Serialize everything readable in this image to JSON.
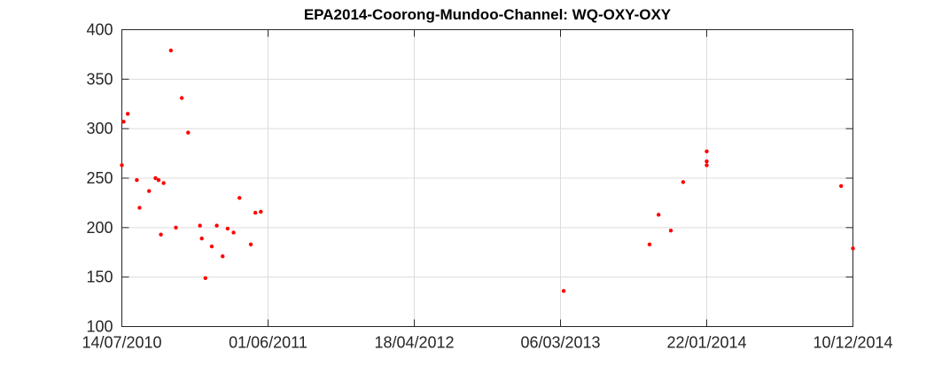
{
  "chart_data": {
    "type": "scatter",
    "title": "EPA2014-Coorong-Mundoo-Channel: WQ-OXY-OXY",
    "xlabel": "",
    "ylabel": "",
    "x_type": "date",
    "xlim": [
      "2010-07-14",
      "2014-12-10"
    ],
    "ylim": [
      100,
      400
    ],
    "x_ticks": [
      {
        "date": "2010-07-14",
        "label": "14/07/2010"
      },
      {
        "date": "2011-06-01",
        "label": "01/06/2011"
      },
      {
        "date": "2012-04-18",
        "label": "18/04/2012"
      },
      {
        "date": "2013-03-06",
        "label": "06/03/2013"
      },
      {
        "date": "2014-01-22",
        "label": "22/01/2014"
      },
      {
        "date": "2014-12-10",
        "label": "10/12/2014"
      }
    ],
    "y_ticks": [
      100,
      150,
      200,
      250,
      300,
      350,
      400
    ],
    "grid": true,
    "marker_color": "#ff0000",
    "series": [
      {
        "points": [
          {
            "x": "2010-07-14",
            "y": 263
          },
          {
            "x": "2010-07-18",
            "y": 307
          },
          {
            "x": "2010-07-27",
            "y": 315
          },
          {
            "x": "2010-08-16",
            "y": 248
          },
          {
            "x": "2010-08-22",
            "y": 220
          },
          {
            "x": "2010-09-12",
            "y": 237
          },
          {
            "x": "2010-09-26",
            "y": 250
          },
          {
            "x": "2010-10-03",
            "y": 248
          },
          {
            "x": "2010-10-08",
            "y": 193
          },
          {
            "x": "2010-10-14",
            "y": 245
          },
          {
            "x": "2010-10-30",
            "y": 379
          },
          {
            "x": "2010-11-10",
            "y": 200
          },
          {
            "x": "2010-11-23",
            "y": 331
          },
          {
            "x": "2010-12-07",
            "y": 296
          },
          {
            "x": "2011-01-02",
            "y": 202
          },
          {
            "x": "2011-01-06",
            "y": 189
          },
          {
            "x": "2011-01-14",
            "y": 149
          },
          {
            "x": "2011-01-28",
            "y": 181
          },
          {
            "x": "2011-02-08",
            "y": 202
          },
          {
            "x": "2011-02-21",
            "y": 171
          },
          {
            "x": "2011-03-04",
            "y": 199
          },
          {
            "x": "2011-03-17",
            "y": 195
          },
          {
            "x": "2011-03-30",
            "y": 230
          },
          {
            "x": "2011-04-24",
            "y": 183
          },
          {
            "x": "2011-05-04",
            "y": 215
          },
          {
            "x": "2011-05-16",
            "y": 216
          },
          {
            "x": "2013-03-13",
            "y": 136
          },
          {
            "x": "2013-09-18",
            "y": 183
          },
          {
            "x": "2013-10-08",
            "y": 213
          },
          {
            "x": "2013-11-04",
            "y": 197
          },
          {
            "x": "2013-12-01",
            "y": 246
          },
          {
            "x": "2014-01-22",
            "y": 277
          },
          {
            "x": "2014-01-22",
            "y": 267
          },
          {
            "x": "2014-01-22",
            "y": 263
          },
          {
            "x": "2014-11-14",
            "y": 242
          },
          {
            "x": "2014-12-10",
            "y": 179
          }
        ]
      }
    ]
  }
}
